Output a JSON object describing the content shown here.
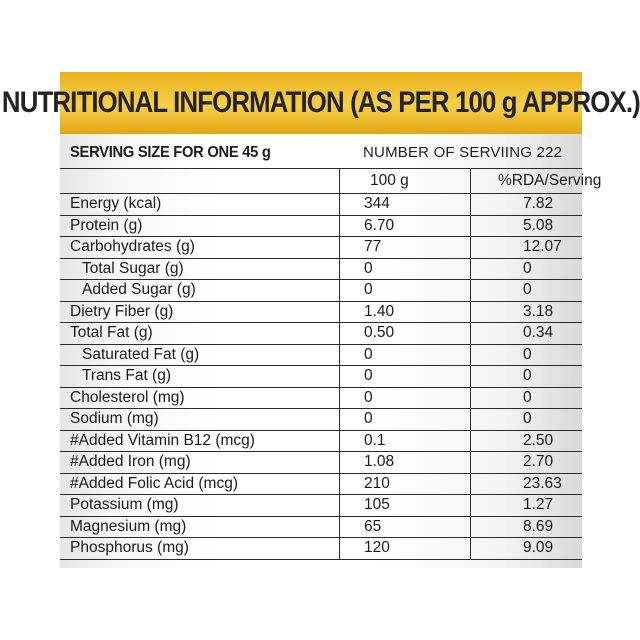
{
  "header": {
    "title": "NUTRITIONAL INFORMATION (AS PER 100 g APPROX.)"
  },
  "serving": {
    "size_label": "SERVING SIZE FOR ONE 45 g",
    "servings_label": "NUMBER OF SERVIING 222"
  },
  "columns": {
    "per_100g": "100 g",
    "rda": "%RDA/Serving"
  },
  "rows": [
    {
      "name": "Energy (kcal)",
      "per_100g": "344",
      "rda": "7.82",
      "indent": false
    },
    {
      "name": "Protein (g)",
      "per_100g": "6.70",
      "rda": "5.08",
      "indent": false
    },
    {
      "name": "Carbohydrates (g)",
      "per_100g": "77",
      "rda": "12.07",
      "indent": false
    },
    {
      "name": "Total Sugar (g)",
      "per_100g": "0",
      "rda": "0",
      "indent": true
    },
    {
      "name": "Added Sugar (g)",
      "per_100g": "0",
      "rda": "0",
      "indent": true
    },
    {
      "name": "Dietry Fiber (g)",
      "per_100g": "1.40",
      "rda": "3.18",
      "indent": false
    },
    {
      "name": "Total Fat (g)",
      "per_100g": "0.50",
      "rda": "0.34",
      "indent": false
    },
    {
      "name": "Saturated Fat (g)",
      "per_100g": "0",
      "rda": "0",
      "indent": true
    },
    {
      "name": "Trans Fat (g)",
      "per_100g": "0",
      "rda": "0",
      "indent": true
    },
    {
      "name": "Cholesterol (mg)",
      "per_100g": "0",
      "rda": "0",
      "indent": false
    },
    {
      "name": "Sodium (mg)",
      "per_100g": "0",
      "rda": "0",
      "indent": false
    },
    {
      "name": "#Added Vitamin B12 (mcg)",
      "per_100g": "0.1",
      "rda": "2.50",
      "indent": false
    },
    {
      "name": "#Added Iron (mg)",
      "per_100g": "1.08",
      "rda": "2.70",
      "indent": false
    },
    {
      "name": "#Added Folic Acid (mcg)",
      "per_100g": "210",
      "rda": "23.63",
      "indent": false
    },
    {
      "name": "Potassium (mg)",
      "per_100g": "105",
      "rda": "1.27",
      "indent": false
    },
    {
      "name": "Magnesium (mg)",
      "per_100g": "65",
      "rda": "8.69",
      "indent": false
    },
    {
      "name": "Phosphorus (mg)",
      "per_100g": "120",
      "rda": "9.09",
      "indent": false
    }
  ]
}
